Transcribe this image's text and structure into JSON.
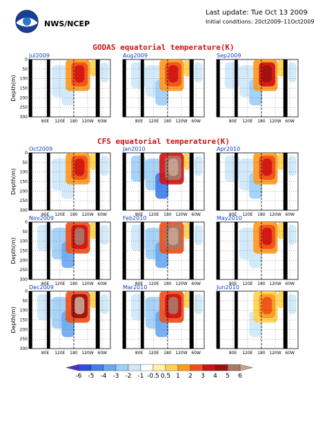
{
  "header": {
    "org": "NWS/NCEP",
    "last_update": "Last update: Tue Oct 13 2009",
    "initial_conditions": "Initial conditions: 20ct2009–11Oct2009"
  },
  "titles": {
    "godas": "GODAS equatorial temperature(K)",
    "cfs": "CFS equatorial temperature(K)"
  },
  "chart_data": {
    "type": "heatmap",
    "description_axes": {
      "ylabel": "Depth(m)",
      "yticks": [
        "0",
        "50",
        "100",
        "150",
        "200",
        "250",
        "300"
      ],
      "xticks": [
        "80E",
        "120E",
        "180",
        "120W",
        "60W"
      ],
      "ylim": [
        0,
        300
      ],
      "grid": true
    },
    "colorbar": {
      "labels": [
        "-6",
        "-5",
        "-4",
        "-3",
        "-2",
        "-1",
        "-0.5",
        "0.5",
        "1",
        "2",
        "3",
        "4",
        "5",
        "6"
      ],
      "colors": [
        "#5a2ad0",
        "#2e4be0",
        "#3f7fea",
        "#6aa9f2",
        "#9fcff7",
        "#cfe8fb",
        "#ffffff",
        "#fff3a8",
        "#ffd34d",
        "#ff9a1e",
        "#f0501a",
        "#d21212",
        "#9e1010",
        "#a87a66",
        "#c9a594"
      ]
    },
    "panels": [
      {
        "label": "Jul2009",
        "group": "godas",
        "anomaly": 0.8
      },
      {
        "label": "Aug2009",
        "group": "godas",
        "anomaly": 1.0
      },
      {
        "label": "Sep2009",
        "group": "godas",
        "anomaly": 1.1
      },
      {
        "label": "Oct2009",
        "group": "cfs",
        "anomaly": 0.9
      },
      {
        "label": "Jan2010",
        "group": "cfs",
        "anomaly": 1.9
      },
      {
        "label": "Apr2010",
        "group": "cfs",
        "anomaly": 1.0
      },
      {
        "label": "Nov2009",
        "group": "cfs",
        "anomaly": 1.4
      },
      {
        "label": "Feb2010",
        "group": "cfs",
        "anomaly": 1.8
      },
      {
        "label": "May2010",
        "group": "cfs",
        "anomaly": 0.8
      },
      {
        "label": "Dec2009",
        "group": "cfs",
        "anomaly": 1.7
      },
      {
        "label": "Mar2010",
        "group": "cfs",
        "anomaly": 1.4
      },
      {
        "label": "Jun2010",
        "group": "cfs",
        "anomaly": 0.6
      }
    ]
  },
  "colors": {
    "title": "#d21010",
    "panel_label": "#1040c0"
  }
}
